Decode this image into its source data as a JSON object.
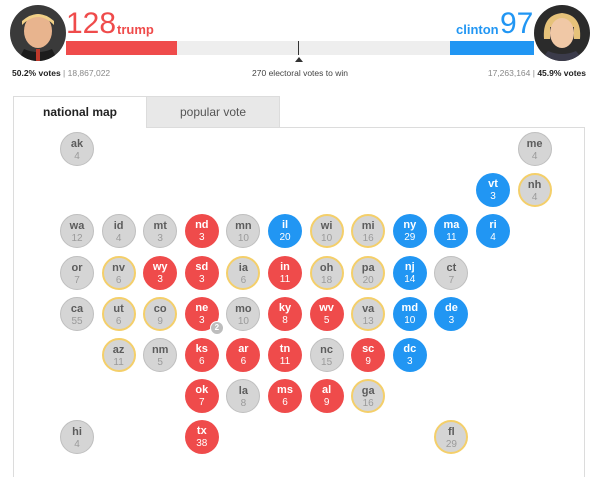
{
  "header": {
    "trump": {
      "ev": "128",
      "name": "trump",
      "pct": "50.2% votes",
      "votes": "18,867,022"
    },
    "clinton": {
      "ev": "97",
      "name": "clinton",
      "pct": "45.9% votes",
      "votes": "17,263,164"
    },
    "to_win": "270 electoral votes to win",
    "progress": {
      "trump_fraction": 0.2379,
      "clinton_fraction": 0.1803
    }
  },
  "tabs": [
    {
      "label": "national map",
      "active": true
    },
    {
      "label": "popular vote",
      "active": false
    }
  ],
  "colors": {
    "trump": "#ef4b4b",
    "clinton": "#2196f3",
    "undecided": "#d5d5d5",
    "tossup_ring": "#f4cf6a"
  },
  "badge": {
    "state": "ne",
    "value": "2"
  },
  "states": [
    {
      "ab": "ak",
      "ev": "4",
      "status": "gray",
      "col": 0,
      "row": 0
    },
    {
      "ab": "me",
      "ev": "4",
      "status": "gray",
      "col": 11,
      "row": 0
    },
    {
      "ab": "vt",
      "ev": "3",
      "status": "blue",
      "col": 10,
      "row": 1
    },
    {
      "ab": "nh",
      "ev": "4",
      "status": "tossup",
      "col": 11,
      "row": 1
    },
    {
      "ab": "wa",
      "ev": "12",
      "status": "gray",
      "col": 0,
      "row": 2
    },
    {
      "ab": "id",
      "ev": "4",
      "status": "gray",
      "col": 1,
      "row": 2
    },
    {
      "ab": "mt",
      "ev": "3",
      "status": "gray",
      "col": 2,
      "row": 2
    },
    {
      "ab": "nd",
      "ev": "3",
      "status": "red",
      "col": 3,
      "row": 2
    },
    {
      "ab": "mn",
      "ev": "10",
      "status": "gray",
      "col": 4,
      "row": 2
    },
    {
      "ab": "il",
      "ev": "20",
      "status": "blue",
      "col": 5,
      "row": 2
    },
    {
      "ab": "wi",
      "ev": "10",
      "status": "tossup",
      "col": 6,
      "row": 2
    },
    {
      "ab": "mi",
      "ev": "16",
      "status": "tossup",
      "col": 7,
      "row": 2
    },
    {
      "ab": "ny",
      "ev": "29",
      "status": "blue",
      "col": 8,
      "row": 2
    },
    {
      "ab": "ma",
      "ev": "11",
      "status": "blue",
      "col": 9,
      "row": 2
    },
    {
      "ab": "ri",
      "ev": "4",
      "status": "blue",
      "col": 10,
      "row": 2
    },
    {
      "ab": "or",
      "ev": "7",
      "status": "gray",
      "col": 0,
      "row": 3
    },
    {
      "ab": "nv",
      "ev": "6",
      "status": "tossup",
      "col": 1,
      "row": 3
    },
    {
      "ab": "wy",
      "ev": "3",
      "status": "red",
      "col": 2,
      "row": 3
    },
    {
      "ab": "sd",
      "ev": "3",
      "status": "red",
      "col": 3,
      "row": 3
    },
    {
      "ab": "ia",
      "ev": "6",
      "status": "tossup",
      "col": 4,
      "row": 3
    },
    {
      "ab": "in",
      "ev": "11",
      "status": "red",
      "col": 5,
      "row": 3
    },
    {
      "ab": "oh",
      "ev": "18",
      "status": "tossup",
      "col": 6,
      "row": 3
    },
    {
      "ab": "pa",
      "ev": "20",
      "status": "tossup",
      "col": 7,
      "row": 3
    },
    {
      "ab": "nj",
      "ev": "14",
      "status": "blue",
      "col": 8,
      "row": 3
    },
    {
      "ab": "ct",
      "ev": "7",
      "status": "gray",
      "col": 9,
      "row": 3
    },
    {
      "ab": "ca",
      "ev": "55",
      "status": "gray",
      "col": 0,
      "row": 4
    },
    {
      "ab": "ut",
      "ev": "6",
      "status": "tossup",
      "col": 1,
      "row": 4
    },
    {
      "ab": "co",
      "ev": "9",
      "status": "tossup",
      "col": 2,
      "row": 4
    },
    {
      "ab": "ne",
      "ev": "3",
      "status": "red",
      "col": 3,
      "row": 4
    },
    {
      "ab": "mo",
      "ev": "10",
      "status": "gray",
      "col": 4,
      "row": 4
    },
    {
      "ab": "ky",
      "ev": "8",
      "status": "red",
      "col": 5,
      "row": 4
    },
    {
      "ab": "wv",
      "ev": "5",
      "status": "red",
      "col": 6,
      "row": 4
    },
    {
      "ab": "va",
      "ev": "13",
      "status": "tossup",
      "col": 7,
      "row": 4
    },
    {
      "ab": "md",
      "ev": "10",
      "status": "blue",
      "col": 8,
      "row": 4
    },
    {
      "ab": "de",
      "ev": "3",
      "status": "blue",
      "col": 9,
      "row": 4
    },
    {
      "ab": "az",
      "ev": "11",
      "status": "tossup",
      "col": 1,
      "row": 5
    },
    {
      "ab": "nm",
      "ev": "5",
      "status": "gray",
      "col": 2,
      "row": 5
    },
    {
      "ab": "ks",
      "ev": "6",
      "status": "red",
      "col": 3,
      "row": 5
    },
    {
      "ab": "ar",
      "ev": "6",
      "status": "red",
      "col": 4,
      "row": 5
    },
    {
      "ab": "tn",
      "ev": "11",
      "status": "red",
      "col": 5,
      "row": 5
    },
    {
      "ab": "nc",
      "ev": "15",
      "status": "gray",
      "col": 6,
      "row": 5
    },
    {
      "ab": "sc",
      "ev": "9",
      "status": "red",
      "col": 7,
      "row": 5
    },
    {
      "ab": "dc",
      "ev": "3",
      "status": "blue",
      "col": 8,
      "row": 5
    },
    {
      "ab": "ok",
      "ev": "7",
      "status": "red",
      "col": 3,
      "row": 6
    },
    {
      "ab": "la",
      "ev": "8",
      "status": "gray",
      "col": 4,
      "row": 6
    },
    {
      "ab": "ms",
      "ev": "6",
      "status": "red",
      "col": 5,
      "row": 6
    },
    {
      "ab": "al",
      "ev": "9",
      "status": "red",
      "col": 6,
      "row": 6
    },
    {
      "ab": "ga",
      "ev": "16",
      "status": "tossup",
      "col": 7,
      "row": 6
    },
    {
      "ab": "hi",
      "ev": "4",
      "status": "gray",
      "col": 0,
      "row": 7
    },
    {
      "ab": "tx",
      "ev": "38",
      "status": "red",
      "col": 3,
      "row": 7
    },
    {
      "ab": "fl",
      "ev": "29",
      "status": "tossup",
      "col": 9,
      "row": 7
    }
  ]
}
